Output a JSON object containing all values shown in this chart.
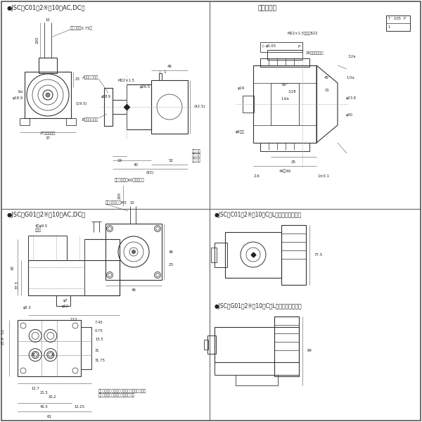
{
  "bg": "#ffffff",
  "lc": "#333333",
  "tc": "#222222",
  "dc": "#555555",
  "title1": "●JSC－C01－2※－10（AC,DC）",
  "title2": "取付部寸法",
  "title3": "●JSC－G01－2※－10（AC,DC）",
  "title4": "●JSC－C01－2※－10－C（L）（オプション）",
  "title5": "●JSC－G01－2※－10－C（L）（オプション）",
  "n_lead": "リード線　0.75㎟",
  "n_aport": "A（ポート）側",
  "n_bport": "B（ポート）側",
  "n_filter": "フィルター（60メッシュ）",
  "n_coil": "コイルを\n外すに要\nする長さ",
  "n_bolt": "ボタンボルト　M5",
  "n_4hole": "4－φ9.5\n座グリ",
  "n_btxt": "ボタンボルトを締めることによって、コイルの\n向きを任意の位置に変更できます。"
}
